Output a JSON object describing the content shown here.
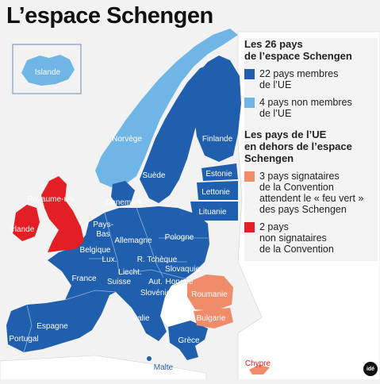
{
  "title": "L’espace Schengen",
  "colors": {
    "sea": "#f2f2f2",
    "non_eu_land": "#ffffff",
    "eu_schengen": "#1f5fae",
    "non_eu_schengen": "#6fb6e6",
    "signatory_pending": "#f08c6a",
    "non_signatory": "#e31e24",
    "border_line": "#8fb3d6"
  },
  "legend": {
    "heading_schengen": "Les 26 pays\nde l’espace Schengen",
    "item_eu_members": "22 pays membres\nde l’UE",
    "item_non_eu_members": "4 pays non membres\nde l’UE",
    "heading_outside": "Les pays de l’UE\nen dehors de l’espace\nSchengen",
    "item_signatories": "3 pays signataires\nde la Convention\nattendent le « feu vert »\ndes pays Schengen",
    "item_non_signatories": "2 pays\nnon signataires\nde la Convention"
  },
  "countries": {
    "islande": "Islande",
    "norvege": "Norvège",
    "finlande": "Finlande",
    "suede": "Suède",
    "estonie": "Estonie",
    "lettonie": "Lettonie",
    "lituanie": "Lituanie",
    "danemark": "Danemark",
    "royaume_uni": "Royaume-uni",
    "irlande": "Irlande",
    "pays_bas": "Pays-\nBas",
    "allemagne": "Allemagne",
    "pologne": "Pologne",
    "belgique": "Belgique",
    "lux": "Lux.",
    "r_tcheque": "R. Tchèque",
    "slovaquie": "Slovaquie",
    "france": "France",
    "liecht": "Liecht.",
    "suisse": "Suisse",
    "aut": "Aut.",
    "hongrie": "Hongrie",
    "slovenie": "Slovénie",
    "roumanie": "Roumanie",
    "bulgarie": "Bulgarie",
    "italie": "Italie",
    "espagne": "Espagne",
    "portugal": "Portugal",
    "grece": "Grèce",
    "malte": "Malte",
    "chypre": "Chypre"
  },
  "logo": "idé"
}
